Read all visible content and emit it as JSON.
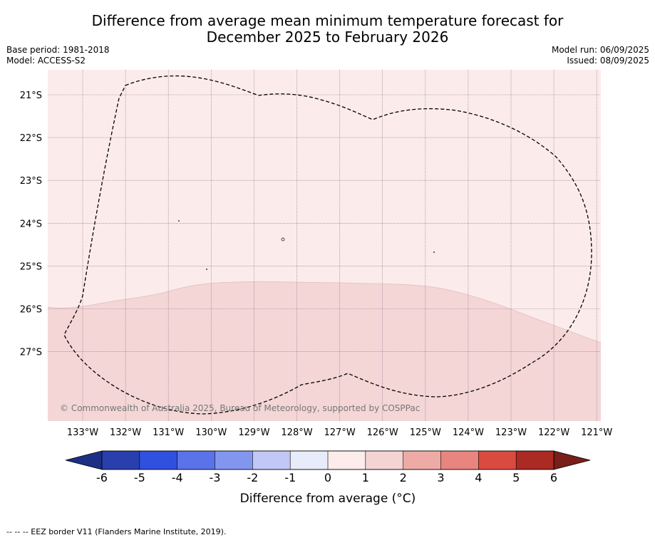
{
  "title_line1": "Difference from average mean minimum temperature forecast for",
  "title_line2": "December 2025 to February 2026",
  "base_period": "Base period: 1981-2018",
  "model": "Model: ACCESS-S2",
  "model_run": "Model run: 06/09/2025",
  "issued": "Issued: 08/09/2025",
  "lat_labels": [
    "21°S",
    "22°S",
    "23°S",
    "24°S",
    "25°S",
    "26°S",
    "27°S"
  ],
  "lon_labels": [
    "133°W",
    "132°W",
    "131°W",
    "130°W",
    "129°W",
    "128°W",
    "127°W",
    "126°W",
    "125°W",
    "124°W",
    "123°W",
    "122°W",
    "121°W"
  ],
  "copyright": "© Commonwealth of Australia 2025, Bureau of Meteorology, supported by COSPPac",
  "colorbar": {
    "ticks": [
      "-6",
      "-5",
      "-4",
      "-3",
      "-2",
      "-1",
      "0",
      "1",
      "2",
      "3",
      "4",
      "5",
      "6"
    ],
    "colors": [
      "#2a3fae",
      "#3050e0",
      "#5a73e8",
      "#8396ef",
      "#c2c8f5",
      "#e8ebfa",
      "#fceceb",
      "#f4d3d3",
      "#eeaba6",
      "#e8857f",
      "#d94a3f",
      "#ab2a23"
    ],
    "under_color": "#1d2f85",
    "over_color": "#7a1e1a",
    "label": "Difference from average (°C)"
  },
  "map_colors": {
    "zone_0_1": "#fbeceb",
    "zone_1_2": "#f4d6d6"
  },
  "footer": "--  --  -- EEZ border V11 (Flanders Marine Institute, 2019)."
}
